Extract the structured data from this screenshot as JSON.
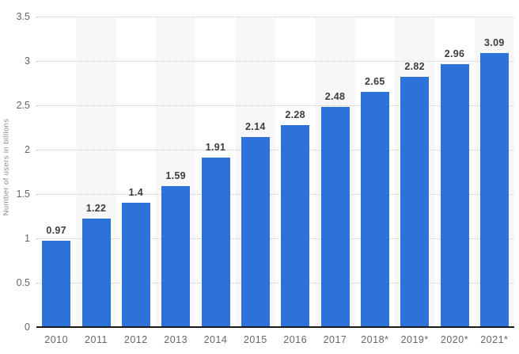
{
  "chart_data": {
    "type": "bar",
    "title": "",
    "xlabel": "",
    "ylabel": "Number of users in billions",
    "categories": [
      "2010",
      "2011",
      "2012",
      "2013",
      "2014",
      "2015",
      "2016",
      "2017",
      "2018*",
      "2019*",
      "2020*",
      "2021*"
    ],
    "values": [
      0.97,
      1.22,
      1.4,
      1.59,
      1.91,
      2.14,
      2.28,
      2.48,
      2.65,
      2.82,
      2.96,
      3.09
    ],
    "value_labels": [
      "0.97",
      "1.22",
      "1.4",
      "1.59",
      "1.91",
      "2.14",
      "2.28",
      "2.48",
      "2.65",
      "2.82",
      "2.96",
      "3.09"
    ],
    "ylim": [
      0,
      3.5
    ],
    "yticks": [
      0,
      0.5,
      1,
      1.5,
      2,
      2.5,
      3,
      3.5
    ],
    "ytick_labels": [
      "0",
      "0.5",
      "1",
      "1.5",
      "2",
      "2.5",
      "3",
      "3.5"
    ],
    "grid": "horizontal-dotted",
    "legend": "none",
    "alternating_column_stripes": true,
    "colors": {
      "bar": "#2d72d8",
      "stripe": "#f7f7f7",
      "gridline": "#c9c9c9",
      "axis_line": "#1a1a1a",
      "tick_text": "#666666",
      "value_text": "#3d3d3d",
      "axis_title_text": "#8a8a8a",
      "background": "#ffffff"
    }
  }
}
